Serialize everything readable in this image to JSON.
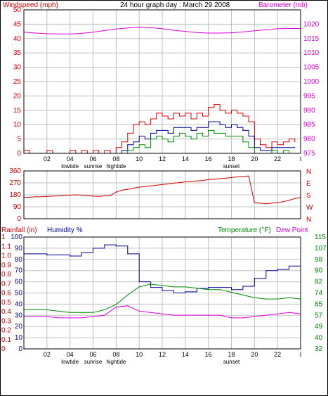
{
  "header": {
    "left_label": "Windspeed (mph)",
    "title": "24 hour graph day : March 29 2008",
    "right_label": "Barometer (mb)"
  },
  "x_axis": {
    "tick_labels": [
      "02",
      "04",
      "06",
      "08",
      "10",
      "12",
      "14",
      "16",
      "18",
      "20",
      "22",
      "I"
    ],
    "events_top": [
      {
        "label": "lowtide",
        "at": "04"
      },
      {
        "label": "sunrise",
        "at": "06"
      },
      {
        "label": "hightide",
        "at": "08"
      },
      {
        "label": "sunset",
        "at": "18"
      }
    ]
  },
  "panel3_labels": {
    "rainfall": "Rainfall (in)",
    "humidity": "Humidity %",
    "temperature": "Temperature (°F)",
    "dewpoint": "Dew Point"
  },
  "colors": {
    "wind_red": "#dd0000",
    "gust_blue": "#000099",
    "wind_green": "#008800",
    "baro": "#dd00dd",
    "dir": "#cc0000",
    "hum": "#000099",
    "temp": "#008800",
    "dew": "#dd00dd",
    "rain": "#cc0000",
    "grid": "#c0c0c0"
  },
  "chart_data": [
    {
      "type": "line",
      "name": "wind_barometer",
      "left_axis": {
        "ticks": [
          "0",
          "5",
          "10",
          "15",
          "20",
          "25",
          "30",
          "35",
          "40",
          "45",
          "50"
        ],
        "range": [
          0,
          50
        ]
      },
      "right_axis": {
        "ticks": [
          "975",
          "980",
          "985",
          "990",
          "995",
          "1000",
          "1005",
          "1010",
          "1015",
          "1020"
        ],
        "range": [
          975,
          1025
        ]
      },
      "x_range": [
        0,
        24
      ],
      "series": [
        {
          "role": "wind_max",
          "axis": "left",
          "x": [
            0,
            0.5,
            1,
            1.5,
            2,
            2.5,
            3,
            3.5,
            4,
            4.5,
            5,
            5.5,
            6,
            6.5,
            7,
            7.5,
            8,
            8.5,
            9,
            9.5,
            10,
            10.5,
            11,
            11.5,
            12,
            12.5,
            13,
            13.5,
            14,
            14.5,
            15,
            15.5,
            16,
            16.5,
            17,
            17.5,
            18,
            18.5,
            19,
            19.5,
            20,
            20.5,
            21,
            21.5,
            22,
            22.5,
            23,
            23.5
          ],
          "y": [
            1,
            0,
            0,
            0,
            1,
            0,
            0,
            0,
            1,
            0,
            1,
            0,
            1,
            0,
            1,
            0,
            2,
            4,
            7,
            10,
            11,
            10,
            12,
            14,
            13,
            12,
            14,
            13,
            14,
            12,
            14,
            13,
            16,
            17,
            15,
            14,
            15,
            14,
            13,
            11,
            5,
            3,
            2,
            4,
            3,
            4,
            5,
            4
          ]
        },
        {
          "role": "wind_avg",
          "axis": "left",
          "x": [
            0,
            0.5,
            1,
            1.5,
            2,
            2.5,
            3,
            3.5,
            4,
            4.5,
            5,
            5.5,
            6,
            6.5,
            7,
            7.5,
            8,
            8.5,
            9,
            9.5,
            10,
            10.5,
            11,
            11.5,
            12,
            12.5,
            13,
            13.5,
            14,
            14.5,
            15,
            15.5,
            16,
            16.5,
            17,
            17.5,
            18,
            18.5,
            19,
            19.5,
            20,
            20.5,
            21,
            21.5,
            22,
            22.5,
            23,
            23.5
          ],
          "y": [
            0,
            0,
            0,
            0,
            0,
            0,
            0,
            0,
            0,
            0,
            0,
            0,
            0,
            0,
            0,
            0,
            0,
            1,
            3,
            4,
            6,
            5,
            7,
            8,
            8,
            7,
            9,
            9,
            9,
            8,
            9,
            9,
            11,
            11,
            10,
            9,
            10,
            9,
            8,
            6,
            2,
            1,
            1,
            2,
            2,
            2,
            2,
            2
          ]
        },
        {
          "role": "wind_min",
          "axis": "left",
          "x": [
            0,
            0.5,
            1,
            1.5,
            2,
            2.5,
            3,
            3.5,
            4,
            4.5,
            5,
            5.5,
            6,
            6.5,
            7,
            7.5,
            8,
            8.5,
            9,
            9.5,
            10,
            10.5,
            11,
            11.5,
            12,
            12.5,
            13,
            13.5,
            14,
            14.5,
            15,
            15.5,
            16,
            16.5,
            17,
            17.5,
            18,
            18.5,
            19,
            19.5,
            20,
            20.5,
            21,
            21.5,
            22,
            22.5,
            23,
            23.5
          ],
          "y": [
            0,
            0,
            0,
            0,
            0,
            0,
            0,
            0,
            0,
            0,
            0,
            0,
            0,
            0,
            0,
            0,
            0,
            0,
            1,
            2,
            3,
            2,
            5,
            6,
            5,
            4,
            6,
            7,
            6,
            5,
            7,
            6,
            8,
            7,
            7,
            6,
            6,
            6,
            4,
            2,
            0,
            0,
            0,
            1,
            0,
            1,
            0,
            0
          ]
        },
        {
          "role": "barometer",
          "axis": "right",
          "x": [
            0,
            1,
            2,
            3,
            4,
            5,
            6,
            7,
            8,
            9,
            10,
            11,
            12,
            13,
            14,
            15,
            16,
            17,
            18,
            19,
            20,
            21,
            22,
            23,
            24
          ],
          "y": [
            1017.2,
            1016.9,
            1016.7,
            1016.6,
            1016.6,
            1016.8,
            1017.2,
            1017.8,
            1018.3,
            1018.7,
            1018.9,
            1018.8,
            1018.4,
            1017.9,
            1017.5,
            1017.1,
            1016.9,
            1016.9,
            1017.0,
            1017.3,
            1017.7,
            1018.1,
            1018.4,
            1018.5,
            1018.5
          ]
        }
      ]
    },
    {
      "type": "line",
      "name": "wind_direction",
      "left_axis": {
        "ticks": [
          "0",
          "90",
          "180",
          "270",
          "360"
        ],
        "range": [
          0,
          360
        ]
      },
      "right_axis": {
        "ticks": [
          "N",
          "E",
          "S",
          "W",
          "N"
        ]
      },
      "x_range": [
        0,
        24
      ],
      "series": [
        {
          "role": "direction",
          "x": [
            0,
            0.5,
            1,
            1.5,
            2,
            2.5,
            3,
            3.5,
            4,
            4.5,
            5,
            5.5,
            6,
            6.5,
            7,
            7.5,
            8,
            8.5,
            9,
            9.5,
            10,
            10.5,
            11,
            11.5,
            12,
            12.5,
            13,
            13.5,
            14,
            14.5,
            15,
            15.5,
            16,
            16.5,
            17,
            17.5,
            18,
            18.5,
            19,
            19.5,
            20,
            20.5,
            21,
            21.5,
            22,
            22.5,
            23,
            23.5,
            24
          ],
          "y": [
            160,
            162,
            165,
            165,
            168,
            170,
            172,
            175,
            178,
            180,
            178,
            175,
            170,
            168,
            172,
            175,
            200,
            215,
            222,
            230,
            238,
            242,
            248,
            252,
            258,
            262,
            268,
            272,
            278,
            282,
            285,
            288,
            295,
            298,
            302,
            305,
            310,
            315,
            318,
            322,
            120,
            118,
            112,
            118,
            122,
            128,
            140,
            152,
            160
          ]
        }
      ]
    },
    {
      "type": "line",
      "name": "rain_humidity_temperature",
      "left_axis_rain": {
        "ticks": [
          "0",
          "0.1",
          "0.2",
          "0.3",
          "0.4",
          "0.5",
          "0.6",
          "0.7",
          "0.8",
          "0.9",
          "1.0",
          "1.1",
          "1"
        ],
        "range": [
          0,
          1.2
        ]
      },
      "left_axis_humidity": {
        "ticks": [
          "0",
          "10",
          "20",
          "30",
          "40",
          "50",
          "60",
          "70",
          "80",
          "90",
          "100"
        ],
        "range": [
          0,
          100
        ]
      },
      "right_axis": {
        "ticks": [
          "32",
          "40",
          "49",
          "57",
          "65",
          "74",
          "82",
          "90",
          "98",
          "107",
          "115"
        ],
        "range": [
          32,
          115
        ]
      },
      "x_range": [
        0,
        24
      ],
      "series": [
        {
          "role": "humidity",
          "axis": "humidity",
          "x": [
            0,
            2,
            3,
            4,
            5,
            6,
            7,
            8,
            9,
            10,
            11,
            12,
            13,
            14,
            15,
            16,
            17,
            18,
            19,
            20,
            21,
            22,
            23,
            24
          ],
          "y": [
            85,
            84,
            84,
            83,
            86,
            90,
            93,
            92,
            85,
            60,
            55,
            52,
            50,
            51,
            54,
            55,
            55,
            53,
            56,
            63,
            70,
            71,
            74,
            74
          ]
        },
        {
          "role": "temperature",
          "axis": "right",
          "x": [
            0,
            1,
            2,
            3,
            4,
            5,
            6,
            7,
            8,
            9,
            10,
            11,
            12,
            13,
            14,
            15,
            16,
            17,
            18,
            19,
            20,
            21,
            22,
            23,
            24
          ],
          "y": [
            61,
            61,
            61,
            60,
            59,
            59,
            59,
            61,
            65,
            72,
            78,
            80,
            79,
            78,
            78,
            77,
            76,
            76,
            74,
            72,
            70,
            69,
            69,
            70,
            69
          ]
        },
        {
          "role": "dewpoint",
          "axis": "right",
          "x": [
            0,
            1,
            2,
            3,
            4,
            5,
            6,
            7,
            8,
            9,
            10,
            11,
            12,
            13,
            14,
            15,
            16,
            17,
            18,
            19,
            20,
            21,
            22,
            23,
            24
          ],
          "y": [
            56,
            56,
            56,
            55,
            55,
            55,
            56,
            57,
            63,
            64,
            60,
            59,
            58,
            57,
            57,
            57,
            57,
            57,
            55,
            55,
            56,
            57,
            58,
            59,
            58
          ]
        },
        {
          "role": "rainfall",
          "axis": "rain",
          "x": [
            0,
            24
          ],
          "y": [
            0,
            0
          ]
        }
      ]
    }
  ]
}
